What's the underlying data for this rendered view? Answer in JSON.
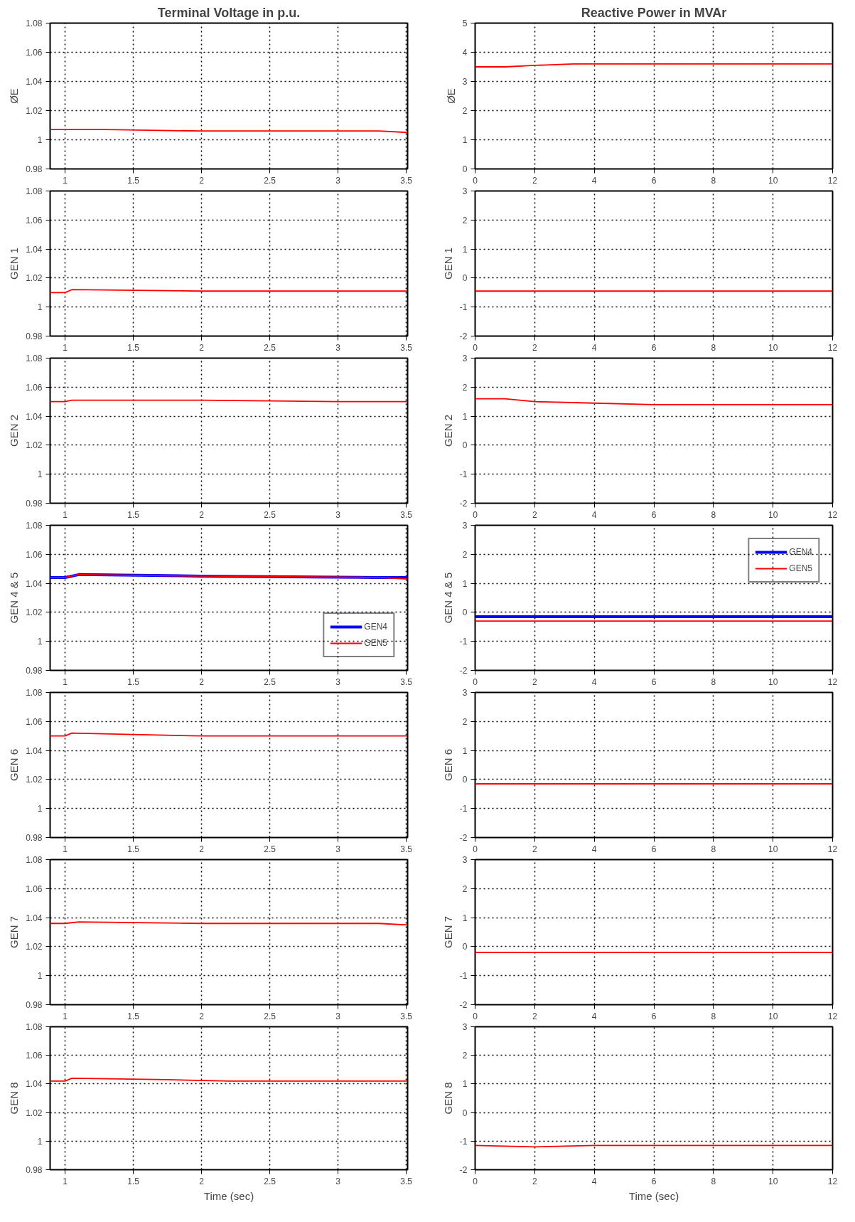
{
  "chart_data": [
    {
      "type": "line",
      "title": "Terminal Voltage in p.u.",
      "ylabel": "ØE",
      "xlim": [
        0.89,
        3.51
      ],
      "xticks": [
        1,
        1.5,
        2,
        2.5,
        3,
        3.5
      ],
      "ylim": [
        0.98,
        1.08
      ],
      "yticks": [
        0.98,
        1,
        1.02,
        1.04,
        1.06,
        1.08
      ],
      "grid": true,
      "series": [
        {
          "color": "#ff0000",
          "x": [
            0.89,
            1.3,
            2,
            3.3,
            3.51
          ],
          "values": [
            1.007,
            1.007,
            1.006,
            1.006,
            1.005
          ]
        }
      ]
    },
    {
      "type": "line",
      "title": "Reactive Power in MVAr",
      "ylabel": "ØE",
      "xlim": [
        0,
        12
      ],
      "xticks": [
        0,
        2,
        4,
        6,
        8,
        10,
        12
      ],
      "ylim": [
        0,
        5
      ],
      "yticks": [
        0,
        1,
        2,
        3,
        4,
        5
      ],
      "grid": true,
      "series": [
        {
          "color": "#ff0000",
          "x": [
            0,
            1,
            2,
            3.3,
            5,
            12
          ],
          "values": [
            3.5,
            3.5,
            3.55,
            3.6,
            3.6,
            3.6
          ]
        }
      ]
    },
    {
      "type": "line",
      "ylabel": "GEN 1",
      "xlim": [
        0.89,
        3.51
      ],
      "xticks": [
        1,
        1.5,
        2,
        2.5,
        3,
        3.5
      ],
      "ylim": [
        0.98,
        1.08
      ],
      "yticks": [
        0.98,
        1,
        1.02,
        1.04,
        1.06,
        1.08
      ],
      "grid": true,
      "series": [
        {
          "color": "#ff0000",
          "x": [
            0.89,
            1,
            1.05,
            2,
            3.51
          ],
          "values": [
            1.01,
            1.01,
            1.012,
            1.011,
            1.011
          ]
        }
      ]
    },
    {
      "type": "line",
      "ylabel": "GEN 1",
      "xlim": [
        0,
        12
      ],
      "xticks": [
        0,
        2,
        4,
        6,
        8,
        10,
        12
      ],
      "ylim": [
        -2,
        3
      ],
      "yticks": [
        -2,
        -1,
        0,
        1,
        2,
        3
      ],
      "grid": true,
      "series": [
        {
          "color": "#ff0000",
          "x": [
            0,
            12
          ],
          "values": [
            -0.45,
            -0.45
          ]
        }
      ]
    },
    {
      "type": "line",
      "ylabel": "GEN 2",
      "xlim": [
        0.89,
        3.51
      ],
      "xticks": [
        1,
        1.5,
        2,
        2.5,
        3,
        3.5
      ],
      "ylim": [
        0.98,
        1.08
      ],
      "yticks": [
        0.98,
        1,
        1.02,
        1.04,
        1.06,
        1.08
      ],
      "grid": true,
      "series": [
        {
          "color": "#ff0000",
          "x": [
            0.89,
            1,
            1.05,
            2,
            3,
            3.51
          ],
          "values": [
            1.05,
            1.05,
            1.051,
            1.051,
            1.05,
            1.05
          ]
        }
      ]
    },
    {
      "type": "line",
      "ylabel": "GEN 2",
      "xlim": [
        0,
        12
      ],
      "xticks": [
        0,
        2,
        4,
        6,
        8,
        10,
        12
      ],
      "ylim": [
        -2,
        3
      ],
      "yticks": [
        -2,
        -1,
        0,
        1,
        2,
        3
      ],
      "grid": true,
      "series": [
        {
          "color": "#ff0000",
          "x": [
            0,
            1,
            2,
            4,
            6,
            12
          ],
          "values": [
            1.6,
            1.6,
            1.5,
            1.45,
            1.4,
            1.4
          ]
        }
      ]
    },
    {
      "type": "line",
      "ylabel": "GEN 4 & 5",
      "xlim": [
        0.89,
        3.51
      ],
      "xticks": [
        1,
        1.5,
        2,
        2.5,
        3,
        3.5
      ],
      "ylim": [
        0.98,
        1.08
      ],
      "yticks": [
        0.98,
        1,
        1.02,
        1.04,
        1.06,
        1.08
      ],
      "grid": true,
      "legend": "bottom right",
      "series": [
        {
          "name": "GEN4",
          "color": "#0000ff",
          "x": [
            0.89,
            1,
            1.1,
            2,
            3.3,
            3.51
          ],
          "values": [
            1.044,
            1.044,
            1.046,
            1.045,
            1.044,
            1.044
          ]
        },
        {
          "name": "GEN5",
          "color": "#ff0000",
          "x": [
            0.89,
            1,
            1.1,
            2,
            3.3,
            3.51
          ],
          "values": [
            1.044,
            1.044,
            1.046,
            1.045,
            1.044,
            1.043
          ]
        }
      ]
    },
    {
      "type": "line",
      "ylabel": "GEN 4 & 5",
      "xlim": [
        0,
        12
      ],
      "xticks": [
        0,
        2,
        4,
        6,
        8,
        10,
        12
      ],
      "ylim": [
        -2,
        3
      ],
      "yticks": [
        -2,
        -1,
        0,
        1,
        2,
        3
      ],
      "grid": true,
      "legend": "top right",
      "series": [
        {
          "name": "GEN4",
          "color": "#0000ff",
          "x": [
            0,
            12
          ],
          "values": [
            -0.15,
            -0.15
          ]
        },
        {
          "name": "GEN5",
          "color": "#ff0000",
          "x": [
            0,
            12
          ],
          "values": [
            -0.3,
            -0.3
          ]
        }
      ]
    },
    {
      "type": "line",
      "ylabel": "GEN 6",
      "xlim": [
        0.89,
        3.51
      ],
      "xticks": [
        1,
        1.5,
        2,
        2.5,
        3,
        3.5
      ],
      "ylim": [
        0.98,
        1.08
      ],
      "yticks": [
        0.98,
        1,
        1.02,
        1.04,
        1.06,
        1.08
      ],
      "grid": true,
      "series": [
        {
          "color": "#ff0000",
          "x": [
            0.89,
            1,
            1.05,
            1.5,
            2,
            3.51
          ],
          "values": [
            1.05,
            1.05,
            1.052,
            1.051,
            1.05,
            1.05
          ]
        }
      ]
    },
    {
      "type": "line",
      "ylabel": "GEN 6",
      "xlim": [
        0,
        12
      ],
      "xticks": [
        0,
        2,
        4,
        6,
        8,
        10,
        12
      ],
      "ylim": [
        -2,
        3
      ],
      "yticks": [
        -2,
        -1,
        0,
        1,
        2,
        3
      ],
      "grid": true,
      "series": [
        {
          "color": "#ff0000",
          "x": [
            0,
            12
          ],
          "values": [
            -0.15,
            -0.15
          ]
        }
      ]
    },
    {
      "type": "line",
      "ylabel": "GEN 7",
      "xlim": [
        0.89,
        3.51
      ],
      "xticks": [
        1,
        1.5,
        2,
        2.5,
        3,
        3.5
      ],
      "ylim": [
        0.98,
        1.08
      ],
      "yticks": [
        0.98,
        1,
        1.02,
        1.04,
        1.06,
        1.08
      ],
      "grid": true,
      "series": [
        {
          "color": "#ff0000",
          "x": [
            0.89,
            1,
            1.1,
            2,
            3.3,
            3.51
          ],
          "values": [
            1.036,
            1.036,
            1.037,
            1.036,
            1.036,
            1.035
          ]
        }
      ]
    },
    {
      "type": "line",
      "ylabel": "GEN 7",
      "xlim": [
        0,
        12
      ],
      "xticks": [
        0,
        2,
        4,
        6,
        8,
        10,
        12
      ],
      "ylim": [
        -2,
        3
      ],
      "yticks": [
        -2,
        -1,
        0,
        1,
        2,
        3
      ],
      "grid": true,
      "series": [
        {
          "color": "#ff0000",
          "x": [
            0,
            12
          ],
          "values": [
            -0.2,
            -0.2
          ]
        }
      ]
    },
    {
      "type": "line",
      "ylabel": "GEN 8",
      "xlabel": "Time (sec)",
      "xlim": [
        0.89,
        3.51
      ],
      "xticks": [
        1,
        1.5,
        2,
        2.5,
        3,
        3.5
      ],
      "ylim": [
        0.98,
        1.08
      ],
      "yticks": [
        0.98,
        1,
        1.02,
        1.04,
        1.06,
        1.08
      ],
      "grid": true,
      "series": [
        {
          "color": "#ff0000",
          "x": [
            0.89,
            1,
            1.05,
            1.75,
            2.2,
            3.51
          ],
          "values": [
            1.042,
            1.042,
            1.044,
            1.043,
            1.042,
            1.042
          ]
        }
      ]
    },
    {
      "type": "line",
      "ylabel": "GEN 8",
      "xlabel": "Time (sec)",
      "xlim": [
        0,
        12
      ],
      "xticks": [
        0,
        2,
        4,
        6,
        8,
        10,
        12
      ],
      "ylim": [
        -2,
        3
      ],
      "yticks": [
        -2,
        -1,
        0,
        1,
        2,
        3
      ],
      "grid": true,
      "series": [
        {
          "color": "#ff0000",
          "x": [
            0,
            2,
            4,
            12
          ],
          "values": [
            -1.15,
            -1.2,
            -1.15,
            -1.15
          ]
        }
      ]
    }
  ]
}
